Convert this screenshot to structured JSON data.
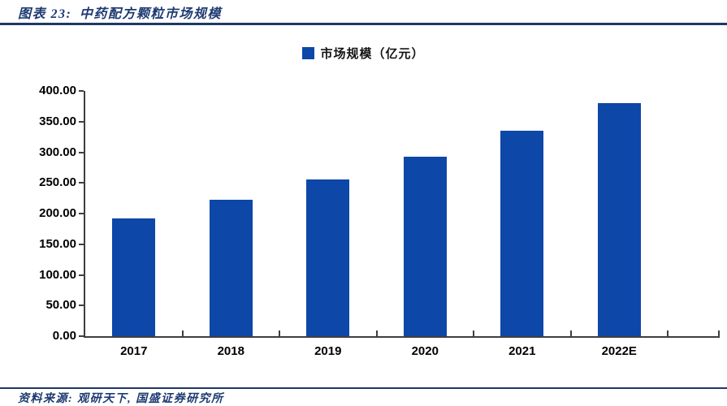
{
  "header": {
    "title": "图表 23: 中药配方颗粒市场规模"
  },
  "footer": {
    "source": "资料来源: 观研天下, 国盛证券研究所"
  },
  "colors": {
    "bar_blue": "#0d47a8",
    "rule_navy": "#1f3864",
    "title_navy": "#1e3a72",
    "axis_gray": "#3f3f3f"
  },
  "chart_data": {
    "type": "bar",
    "title": "中药配方颗粒市场规模",
    "categories": [
      "2017",
      "2018",
      "2019",
      "2020",
      "2021",
      "2022E"
    ],
    "series": [
      {
        "name": "市场规模（亿元）",
        "values": [
          192,
          223,
          256,
          293,
          335,
          380
        ]
      }
    ],
    "xlabel": "",
    "ylabel": "",
    "ylim": [
      0,
      400
    ],
    "ytick_step": 50,
    "ytick_labels": [
      "0.00",
      "50.00",
      "100.00",
      "150.00",
      "200.00",
      "250.00",
      "300.00",
      "350.00",
      "400.00"
    ],
    "grid": false,
    "legend_position": "top-center",
    "bar_color": "#0d47a8"
  }
}
